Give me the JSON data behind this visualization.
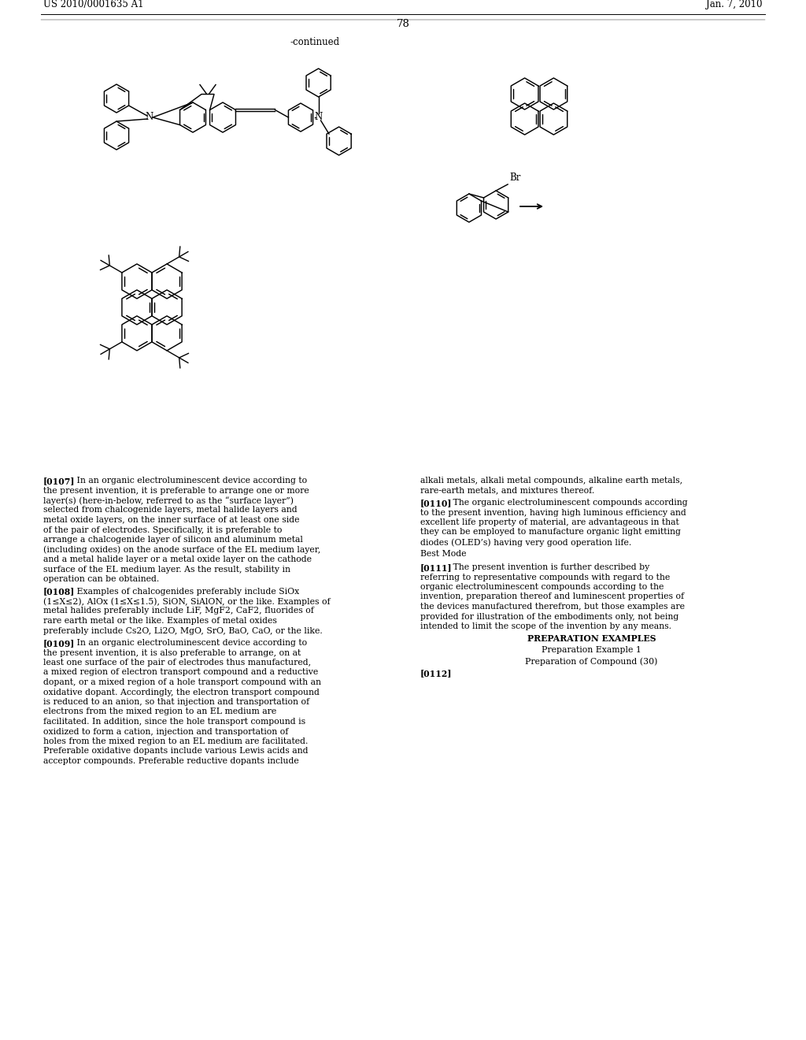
{
  "background_color": "#ffffff",
  "header_left": "US 2010/0001635 A1",
  "header_right": "Jan. 7, 2010",
  "page_number": "78",
  "continued_label": "-continued",
  "para_left": [
    {
      "tag": "[0107]",
      "body": "In an organic electroluminescent device according to the present invention, it is preferable to arrange one or more layer(s) (here-in-below, referred to as the “surface layer”) selected from chalcogenide layers, metal halide layers and metal oxide layers, on the inner surface of at least one side of the pair of electrodes. Specifically, it is preferable to arrange a chalcogenide layer of silicon and aluminum metal (including oxides) on the anode surface of the EL medium layer, and a metal halide layer or a metal oxide layer on the cathode surface of the EL medium layer. As the result, stability in operation can be obtained."
    },
    {
      "tag": "[0108]",
      "body": "Examples of chalcogenides preferably include SiOx (1≤X≤2), AlOx (1≤X≤1.5), SiON, SiAlON, or the like. Examples of metal halides preferably include LiF, MgF2, CaF2, fluorides of rare earth metal or the like. Examples of metal oxides preferably include Cs2O, Li2O, MgO, SrO, BaO, CaO, or the like."
    },
    {
      "tag": "[0109]",
      "body": "In an organic electroluminescent device according to the present invention, it is also preferable to arrange, on at least one surface of the pair of electrodes thus manufactured, a mixed region of electron transport compound and a reductive dopant, or a mixed region of a hole transport compound with an oxidative dopant. Accordingly, the electron transport compound is reduced to an anion, so that injection and transportation of electrons from the mixed region to an EL medium are facilitated. In addition, since the hole transport compound is oxidized to form a cation, injection and transportation of holes from the mixed region to an EL medium are facilitated. Preferable oxidative dopants include various Lewis acids and acceptor compounds. Preferable reductive dopants include"
    }
  ],
  "para_right": [
    {
      "tag": "",
      "body": "alkali metals, alkali metal compounds, alkaline earth metals, rare-earth metals, and mixtures thereof."
    },
    {
      "tag": "[0110]",
      "body": "The organic electroluminescent compounds according to the present invention, having high luminous efficiency and excellent life property of material, are advantageous in that they can be employed to manufacture organic light emitting diodes (OLED’s) having very good operation life."
    },
    {
      "tag": "Best Mode",
      "body": "",
      "style": "plain"
    },
    {
      "tag": "[0111]",
      "body": "The present invention is further described by referring to representative compounds with regard to the organic electroluminescent compounds according to the invention, preparation thereof and luminescent properties of the devices manufactured therefrom, but those examples are provided for illustration of the embodiments only, not being intended to limit the scope of the invention by any means."
    },
    {
      "tag": "PREPARATION EXAMPLES",
      "body": "",
      "style": "center_bold"
    },
    {
      "tag": "Preparation Example 1",
      "body": "",
      "style": "center"
    },
    {
      "tag": "Preparation of Compound (30)",
      "body": "",
      "style": "center"
    },
    {
      "tag": "[0112]",
      "body": "",
      "style": "bold_only"
    }
  ]
}
